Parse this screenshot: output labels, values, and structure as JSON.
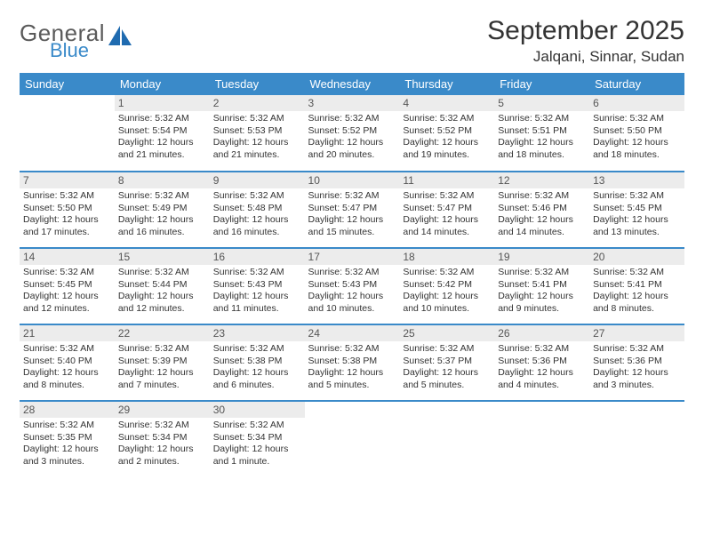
{
  "logo": {
    "word1": "General",
    "word2": "Blue",
    "icon_color": "#1f6bb0"
  },
  "title": "September 2025",
  "location": "Jalqani, Sinnar, Sudan",
  "colors": {
    "header_bg": "#3a8ac9",
    "header_fg": "#ffffff",
    "daynum_bg": "#ececec",
    "rule": "#3a8ac9"
  },
  "daysOfWeek": [
    "Sunday",
    "Monday",
    "Tuesday",
    "Wednesday",
    "Thursday",
    "Friday",
    "Saturday"
  ],
  "weeks": [
    [
      null,
      {
        "n": "1",
        "sunrise": "Sunrise: 5:32 AM",
        "sunset": "Sunset: 5:54 PM",
        "day": "Daylight: 12 hours and 21 minutes."
      },
      {
        "n": "2",
        "sunrise": "Sunrise: 5:32 AM",
        "sunset": "Sunset: 5:53 PM",
        "day": "Daylight: 12 hours and 21 minutes."
      },
      {
        "n": "3",
        "sunrise": "Sunrise: 5:32 AM",
        "sunset": "Sunset: 5:52 PM",
        "day": "Daylight: 12 hours and 20 minutes."
      },
      {
        "n": "4",
        "sunrise": "Sunrise: 5:32 AM",
        "sunset": "Sunset: 5:52 PM",
        "day": "Daylight: 12 hours and 19 minutes."
      },
      {
        "n": "5",
        "sunrise": "Sunrise: 5:32 AM",
        "sunset": "Sunset: 5:51 PM",
        "day": "Daylight: 12 hours and 18 minutes."
      },
      {
        "n": "6",
        "sunrise": "Sunrise: 5:32 AM",
        "sunset": "Sunset: 5:50 PM",
        "day": "Daylight: 12 hours and 18 minutes."
      }
    ],
    [
      {
        "n": "7",
        "sunrise": "Sunrise: 5:32 AM",
        "sunset": "Sunset: 5:50 PM",
        "day": "Daylight: 12 hours and 17 minutes."
      },
      {
        "n": "8",
        "sunrise": "Sunrise: 5:32 AM",
        "sunset": "Sunset: 5:49 PM",
        "day": "Daylight: 12 hours and 16 minutes."
      },
      {
        "n": "9",
        "sunrise": "Sunrise: 5:32 AM",
        "sunset": "Sunset: 5:48 PM",
        "day": "Daylight: 12 hours and 16 minutes."
      },
      {
        "n": "10",
        "sunrise": "Sunrise: 5:32 AM",
        "sunset": "Sunset: 5:47 PM",
        "day": "Daylight: 12 hours and 15 minutes."
      },
      {
        "n": "11",
        "sunrise": "Sunrise: 5:32 AM",
        "sunset": "Sunset: 5:47 PM",
        "day": "Daylight: 12 hours and 14 minutes."
      },
      {
        "n": "12",
        "sunrise": "Sunrise: 5:32 AM",
        "sunset": "Sunset: 5:46 PM",
        "day": "Daylight: 12 hours and 14 minutes."
      },
      {
        "n": "13",
        "sunrise": "Sunrise: 5:32 AM",
        "sunset": "Sunset: 5:45 PM",
        "day": "Daylight: 12 hours and 13 minutes."
      }
    ],
    [
      {
        "n": "14",
        "sunrise": "Sunrise: 5:32 AM",
        "sunset": "Sunset: 5:45 PM",
        "day": "Daylight: 12 hours and 12 minutes."
      },
      {
        "n": "15",
        "sunrise": "Sunrise: 5:32 AM",
        "sunset": "Sunset: 5:44 PM",
        "day": "Daylight: 12 hours and 12 minutes."
      },
      {
        "n": "16",
        "sunrise": "Sunrise: 5:32 AM",
        "sunset": "Sunset: 5:43 PM",
        "day": "Daylight: 12 hours and 11 minutes."
      },
      {
        "n": "17",
        "sunrise": "Sunrise: 5:32 AM",
        "sunset": "Sunset: 5:43 PM",
        "day": "Daylight: 12 hours and 10 minutes."
      },
      {
        "n": "18",
        "sunrise": "Sunrise: 5:32 AM",
        "sunset": "Sunset: 5:42 PM",
        "day": "Daylight: 12 hours and 10 minutes."
      },
      {
        "n": "19",
        "sunrise": "Sunrise: 5:32 AM",
        "sunset": "Sunset: 5:41 PM",
        "day": "Daylight: 12 hours and 9 minutes."
      },
      {
        "n": "20",
        "sunrise": "Sunrise: 5:32 AM",
        "sunset": "Sunset: 5:41 PM",
        "day": "Daylight: 12 hours and 8 minutes."
      }
    ],
    [
      {
        "n": "21",
        "sunrise": "Sunrise: 5:32 AM",
        "sunset": "Sunset: 5:40 PM",
        "day": "Daylight: 12 hours and 8 minutes."
      },
      {
        "n": "22",
        "sunrise": "Sunrise: 5:32 AM",
        "sunset": "Sunset: 5:39 PM",
        "day": "Daylight: 12 hours and 7 minutes."
      },
      {
        "n": "23",
        "sunrise": "Sunrise: 5:32 AM",
        "sunset": "Sunset: 5:38 PM",
        "day": "Daylight: 12 hours and 6 minutes."
      },
      {
        "n": "24",
        "sunrise": "Sunrise: 5:32 AM",
        "sunset": "Sunset: 5:38 PM",
        "day": "Daylight: 12 hours and 5 minutes."
      },
      {
        "n": "25",
        "sunrise": "Sunrise: 5:32 AM",
        "sunset": "Sunset: 5:37 PM",
        "day": "Daylight: 12 hours and 5 minutes."
      },
      {
        "n": "26",
        "sunrise": "Sunrise: 5:32 AM",
        "sunset": "Sunset: 5:36 PM",
        "day": "Daylight: 12 hours and 4 minutes."
      },
      {
        "n": "27",
        "sunrise": "Sunrise: 5:32 AM",
        "sunset": "Sunset: 5:36 PM",
        "day": "Daylight: 12 hours and 3 minutes."
      }
    ],
    [
      {
        "n": "28",
        "sunrise": "Sunrise: 5:32 AM",
        "sunset": "Sunset: 5:35 PM",
        "day": "Daylight: 12 hours and 3 minutes."
      },
      {
        "n": "29",
        "sunrise": "Sunrise: 5:32 AM",
        "sunset": "Sunset: 5:34 PM",
        "day": "Daylight: 12 hours and 2 minutes."
      },
      {
        "n": "30",
        "sunrise": "Sunrise: 5:32 AM",
        "sunset": "Sunset: 5:34 PM",
        "day": "Daylight: 12 hours and 1 minute."
      },
      null,
      null,
      null,
      null
    ]
  ]
}
